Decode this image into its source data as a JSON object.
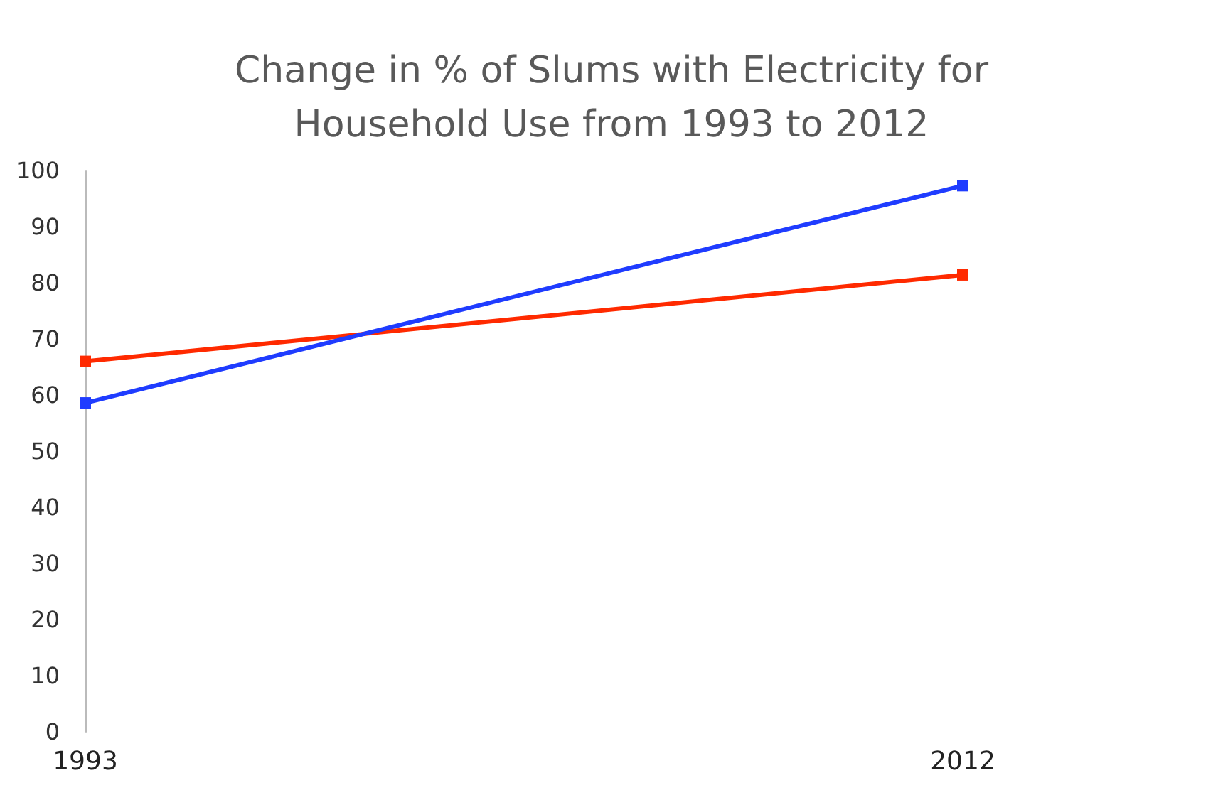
{
  "chart_data": {
    "type": "line",
    "title": "Change in % of Slums with Electricity for\nHousehold Use from 1993 to 2012",
    "categories": [
      "1993",
      "2012"
    ],
    "series": [
      {
        "color": "#ff2a00",
        "values": [
          66,
          81.4
        ]
      },
      {
        "color": "#1f3cff",
        "values": [
          58.6,
          97.3
        ]
      }
    ],
    "ylim": [
      0,
      100
    ],
    "yticks": [
      0,
      10,
      20,
      30,
      40,
      50,
      60,
      70,
      80,
      90,
      100
    ],
    "grid": false,
    "marker": "square",
    "line_style": "solid"
  }
}
